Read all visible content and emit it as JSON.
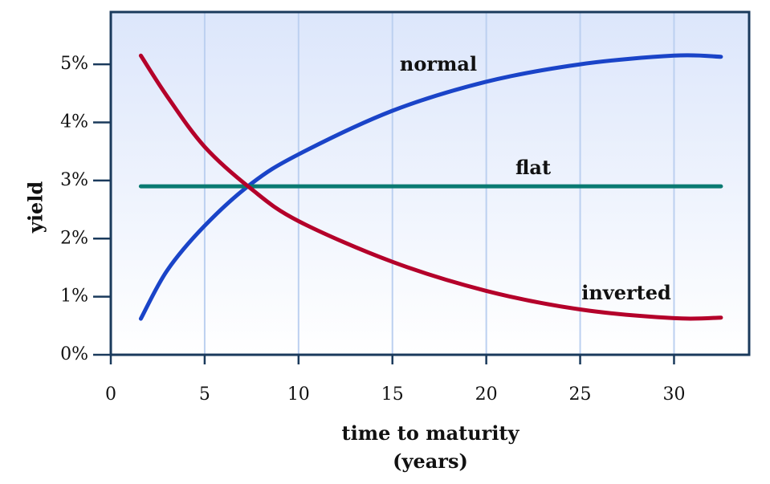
{
  "chart_data": {
    "type": "line",
    "xlabel_line1": "time to maturity",
    "xlabel_line2": "(years)",
    "ylabel": "yield",
    "xlim": [
      0,
      34
    ],
    "ylim": [
      0,
      5.9
    ],
    "x_ticks": [
      0,
      5,
      10,
      15,
      20,
      25,
      30
    ],
    "x_tick_labels": [
      "0",
      "5",
      "10",
      "15",
      "20",
      "25",
      "30"
    ],
    "y_ticks": [
      0,
      1,
      2,
      3,
      4,
      5
    ],
    "y_tick_labels": [
      "0%",
      "1%",
      "2%",
      "3%",
      "4%",
      "5%"
    ],
    "grid": "vertical",
    "series": [
      {
        "name": "normal",
        "color": "#1a44c8",
        "x": [
          1.6,
          3,
          5,
          7.5,
          10,
          15,
          20,
          25,
          30,
          32.5
        ],
        "y": [
          0.62,
          1.45,
          2.22,
          2.95,
          3.45,
          4.2,
          4.7,
          5.0,
          5.15,
          5.13
        ]
      },
      {
        "name": "flat",
        "color": "#0a7a72",
        "x": [
          1.6,
          32.5
        ],
        "y": [
          2.9,
          2.9
        ]
      },
      {
        "name": "inverted",
        "color": "#b4002a",
        "x": [
          1.6,
          3,
          5,
          7.5,
          10,
          15,
          20,
          25,
          30,
          32.5
        ],
        "y": [
          5.15,
          4.45,
          3.58,
          2.85,
          2.3,
          1.6,
          1.1,
          0.78,
          0.63,
          0.64
        ]
      }
    ],
    "colors": {
      "plot_bg_top": "#dce6fb",
      "plot_bg_bottom": "#ffffff",
      "frame": "#1a3a5c",
      "grid": "#bcd0f0"
    }
  }
}
